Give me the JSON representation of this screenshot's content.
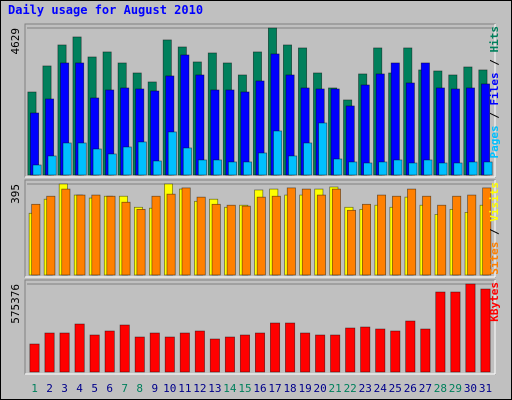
{
  "chart_data": [
    {
      "type": "bar",
      "title": "Daily usage for August 2010",
      "legend_separator": " / ",
      "ylim": [
        0,
        4629
      ],
      "yticks": [
        4629
      ],
      "grid": true,
      "series": [
        {
          "name": "Hits",
          "color": "#00805c",
          "values": [
            2614,
            3434,
            4095,
            4347,
            3717,
            3875,
            3528,
            3213,
            2930,
            4253,
            4032,
            3560,
            3843,
            3528,
            3150,
            3875,
            4629,
            4095,
            4001,
            3213,
            2741,
            2363,
            3182,
            4001,
            3213,
            4001,
            3308,
            3276,
            3150,
            3402,
            3308
          ]
        },
        {
          "name": "Files",
          "color": "#0000ff",
          "values": [
            1953,
            2394,
            3528,
            3528,
            2426,
            2678,
            2741,
            2709,
            2646,
            3119,
            3780,
            3150,
            2678,
            2678,
            2615,
            2961,
            3812,
            3150,
            2741,
            2709,
            2709,
            2174,
            2835,
            3182,
            3528,
            2898,
            3528,
            2741,
            2709,
            2741,
            2867
          ]
        },
        {
          "name": "Pages",
          "color": "#00c0ff",
          "values": [
            315,
            599,
            1008,
            1008,
            819,
            662,
            882,
            1040,
            441,
            1355,
            851,
            473,
            473,
            410,
            410,
            693,
            1386,
            599,
            1008,
            1638,
            504,
            410,
            378,
            410,
            473,
            378,
            473,
            378,
            378,
            410,
            410
          ]
        }
      ]
    },
    {
      "type": "bar",
      "legend_separator": " / ",
      "ylim": [
        0,
        395
      ],
      "yticks": [
        395
      ],
      "grid": true,
      "series": [
        {
          "name": "Visits",
          "color": "#ffff00",
          "values": [
            268,
            329,
            395,
            347,
            334,
            342,
            342,
            294,
            290,
            395,
            373,
            320,
            329,
            294,
            303,
            369,
            373,
            347,
            347,
            373,
            382,
            294,
            285,
            303,
            294,
            338,
            303,
            263,
            285,
            272,
            303
          ]
        },
        {
          "name": "Sites",
          "color": "#ff8000",
          "values": [
            307,
            342,
            373,
            347,
            347,
            342,
            316,
            285,
            342,
            351,
            378,
            338,
            307,
            303,
            299,
            338,
            342,
            378,
            373,
            347,
            373,
            281,
            307,
            347,
            342,
            373,
            342,
            303,
            342,
            347,
            378
          ]
        }
      ]
    },
    {
      "type": "bar",
      "ylim": [
        0,
        575376
      ],
      "yticks": [
        575376
      ],
      "grid": true,
      "categories": [
        "1",
        "2",
        "3",
        "4",
        "5",
        "6",
        "7",
        "8",
        "9",
        "10",
        "11",
        "12",
        "13",
        "14",
        "15",
        "16",
        "17",
        "18",
        "19",
        "20",
        "21",
        "22",
        "23",
        "24",
        "25",
        "26",
        "27",
        "28",
        "29",
        "30",
        "31"
      ],
      "category_colors": [
        "#00805c",
        "#00008b",
        "#00008b",
        "#00008b",
        "#00008b",
        "#00008b",
        "#00805c",
        "#00805c",
        "#00008b",
        "#00008b",
        "#00008b",
        "#00008b",
        "#00008b",
        "#00805c",
        "#00805c",
        "#00008b",
        "#00008b",
        "#00008b",
        "#00008b",
        "#00008b",
        "#00805c",
        "#00805c",
        "#00008b",
        "#00008b",
        "#00008b",
        "#00008b",
        "#00008b",
        "#00805c",
        "#00805c",
        "#00008b",
        "#00008b"
      ],
      "series": [
        {
          "name": "KBytes",
          "color": "#ff0000",
          "values": [
            183064,
            254982,
            254982,
            313824,
            241906,
            268058,
            307286,
            228830,
            254982,
            228830,
            254982,
            268058,
            215754,
            228830,
            241906,
            254982,
            320362,
            320362,
            254982,
            241906,
            241906,
            287672,
            294210,
            281134,
            268058,
            333438,
            281134,
            523040,
            523040,
            575376,
            542654
          ]
        }
      ]
    }
  ]
}
